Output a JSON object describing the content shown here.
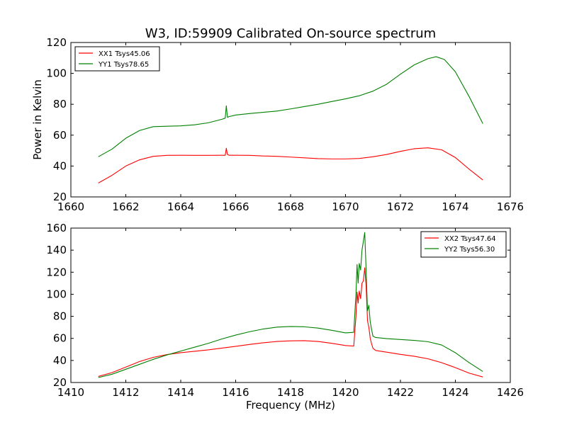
{
  "chart_data": [
    {
      "type": "line",
      "title": "W3, ID:59909 Calibrated On-source spectrum",
      "xlabel": "",
      "ylabel": "Power in Kelvin",
      "xlim": [
        1660,
        1676
      ],
      "ylim": [
        20,
        120
      ],
      "xticks": [
        1660,
        1662,
        1664,
        1666,
        1668,
        1670,
        1672,
        1674,
        1676
      ],
      "yticks": [
        20,
        40,
        60,
        80,
        100,
        120
      ],
      "grid": false,
      "legend_position": "top-left",
      "series": [
        {
          "name": "XX1 Tsys45.06",
          "color": "#ff0000",
          "x": [
            1661.0,
            1661.5,
            1662.0,
            1662.5,
            1663.0,
            1663.5,
            1664.0,
            1664.5,
            1665.0,
            1665.5,
            1665.62,
            1665.66,
            1665.7,
            1665.76,
            1666.0,
            1666.5,
            1667.0,
            1667.5,
            1668.0,
            1668.5,
            1669.0,
            1669.5,
            1670.0,
            1670.5,
            1671.0,
            1671.5,
            1672.0,
            1672.5,
            1673.0,
            1673.5,
            1674.0,
            1674.5,
            1675.0
          ],
          "y": [
            29,
            34,
            40,
            44,
            46.3,
            46.9,
            47.0,
            46.9,
            46.9,
            47.0,
            47.0,
            51.5,
            47.5,
            47.0,
            47.0,
            46.9,
            46.5,
            46.3,
            45.8,
            45.3,
            44.8,
            44.6,
            44.6,
            44.9,
            46.0,
            47.5,
            49.5,
            51.2,
            51.8,
            50.5,
            45.5,
            38.0,
            31.0
          ]
        },
        {
          "name": "YY1 Tsys78.65",
          "color": "#008000",
          "x": [
            1661.0,
            1661.5,
            1662.0,
            1662.5,
            1663.0,
            1663.5,
            1664.0,
            1664.5,
            1665.0,
            1665.5,
            1665.62,
            1665.66,
            1665.7,
            1665.76,
            1666.0,
            1666.5,
            1667.0,
            1667.5,
            1668.0,
            1668.5,
            1669.0,
            1669.5,
            1670.0,
            1670.5,
            1671.0,
            1671.5,
            1672.0,
            1672.5,
            1673.0,
            1673.3,
            1673.6,
            1674.0,
            1674.5,
            1675.0
          ],
          "y": [
            46,
            51,
            58,
            63,
            65.5,
            65.8,
            66.0,
            66.7,
            68.0,
            70.3,
            71.0,
            79.0,
            71.5,
            72.0,
            73.0,
            74.0,
            74.8,
            75.6,
            77.0,
            78.5,
            80.0,
            81.8,
            83.5,
            85.5,
            88.5,
            93.0,
            99.5,
            105.5,
            109.5,
            110.8,
            109.0,
            101.0,
            85.0,
            67.5
          ]
        }
      ]
    },
    {
      "type": "line",
      "title": "",
      "xlabel": "Frequency (MHz)",
      "ylabel": "",
      "xlim": [
        1410,
        1426
      ],
      "ylim": [
        20,
        160
      ],
      "xticks": [
        1410,
        1412,
        1414,
        1416,
        1418,
        1420,
        1422,
        1424,
        1426
      ],
      "yticks": [
        20,
        40,
        60,
        80,
        100,
        120,
        140,
        160
      ],
      "grid": false,
      "legend_position": "top-right",
      "series": [
        {
          "name": "XX2 Tsys47.64",
          "color": "#ff0000",
          "x": [
            1411.0,
            1411.5,
            1412.0,
            1412.5,
            1413.0,
            1413.5,
            1414.0,
            1414.5,
            1415.0,
            1415.5,
            1416.0,
            1416.5,
            1417.0,
            1417.5,
            1418.0,
            1418.5,
            1419.0,
            1419.5,
            1420.0,
            1420.3,
            1420.38,
            1420.42,
            1420.46,
            1420.5,
            1420.55,
            1420.6,
            1420.65,
            1420.7,
            1420.75,
            1420.8,
            1420.85,
            1420.9,
            1420.95,
            1421.0,
            1421.1,
            1421.5,
            1422.0,
            1422.5,
            1423.0,
            1423.5,
            1424.0,
            1424.5,
            1425.0
          ],
          "y": [
            25.5,
            29.0,
            34.0,
            39.0,
            42.8,
            45.3,
            47.0,
            48.3,
            49.6,
            51.2,
            52.8,
            54.5,
            56.0,
            57.2,
            57.8,
            57.9,
            57.2,
            55.5,
            53.5,
            53.0,
            80.0,
            102.0,
            92.0,
            103.0,
            96.0,
            110.0,
            112.0,
            124.0,
            108.0,
            76.0,
            70.0,
            60.0,
            55.0,
            51.0,
            49.0,
            47.5,
            45.5,
            43.8,
            41.5,
            38.0,
            33.5,
            28.5,
            25.0
          ]
        },
        {
          "name": "YY2 Tsys56.30",
          "color": "#008000",
          "x": [
            1411.0,
            1411.5,
            1412.0,
            1412.5,
            1413.0,
            1413.5,
            1414.0,
            1414.5,
            1415.0,
            1415.5,
            1416.0,
            1416.5,
            1417.0,
            1417.5,
            1418.0,
            1418.5,
            1419.0,
            1419.5,
            1420.0,
            1420.3,
            1420.38,
            1420.42,
            1420.46,
            1420.5,
            1420.55,
            1420.6,
            1420.65,
            1420.7,
            1420.75,
            1420.8,
            1420.85,
            1420.9,
            1420.95,
            1421.0,
            1421.1,
            1421.5,
            1422.0,
            1422.5,
            1423.0,
            1423.5,
            1424.0,
            1424.5,
            1425.0
          ],
          "y": [
            24.5,
            27.5,
            32.0,
            36.5,
            41.0,
            45.0,
            48.5,
            52.0,
            55.5,
            59.5,
            63.0,
            66.0,
            68.5,
            70.2,
            70.8,
            70.5,
            69.3,
            67.3,
            65.0,
            65.5,
            100.0,
            127.0,
            110.0,
            128.0,
            122.0,
            140.0,
            148.0,
            156.0,
            122.0,
            85.0,
            90.0,
            75.0,
            68.0,
            62.0,
            60.8,
            59.8,
            59.0,
            58.2,
            57.0,
            54.0,
            47.0,
            38.0,
            30.0
          ]
        }
      ]
    }
  ]
}
